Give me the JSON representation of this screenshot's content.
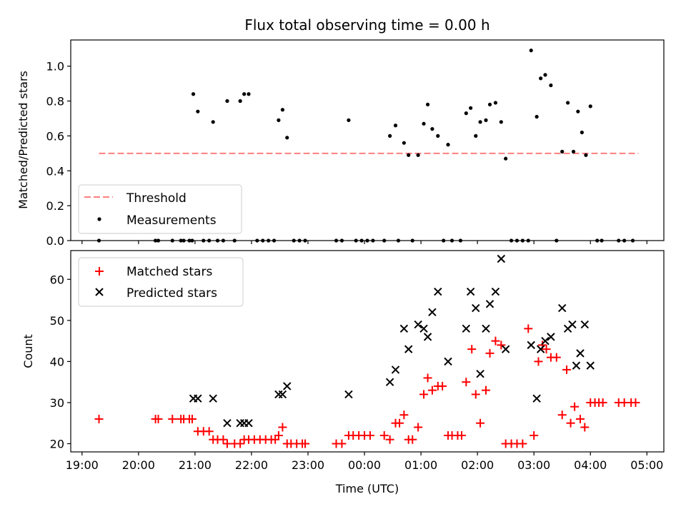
{
  "figure": {
    "title": "Flux total observing time = 0.00 h",
    "xlabel": "Time (UTC)"
  },
  "colors": {
    "threshold": "#ff7f7f",
    "measurements": "#000000",
    "matched": "#ff0000",
    "predicted": "#000000"
  },
  "chart_data": [
    {
      "type": "scatter",
      "ylabel": "Matched/Predicted stars",
      "ylim": [
        0,
        1.15
      ],
      "yticks": [
        0.0,
        0.2,
        0.4,
        0.6,
        0.8,
        1.0
      ],
      "ytick_labels": [
        "0.0",
        "0.2",
        "0.4",
        "0.6",
        "0.8",
        "1.0"
      ],
      "x_unit": "hours UTC (continuing past midnight)",
      "xlim": [
        18.8,
        29.3
      ],
      "xticks": [
        19,
        20,
        21,
        22,
        23,
        24,
        25,
        26,
        27,
        28,
        29
      ],
      "legend": {
        "position": "lower-left",
        "entries": [
          "Threshold",
          "Measurements"
        ]
      },
      "grid": false,
      "threshold": {
        "name": "Threshold",
        "x": [
          19.3,
          28.85
        ],
        "y": 0.5
      },
      "measurements": {
        "name": "Measurements",
        "points": [
          [
            19.3,
            0.0
          ],
          [
            20.3,
            0.0
          ],
          [
            20.35,
            0.0
          ],
          [
            20.6,
            0.0
          ],
          [
            20.75,
            0.0
          ],
          [
            20.8,
            0.0
          ],
          [
            20.9,
            0.0
          ],
          [
            20.95,
            0.0
          ],
          [
            20.97,
            0.84
          ],
          [
            21.05,
            0.74
          ],
          [
            21.15,
            0.0
          ],
          [
            21.25,
            0.0
          ],
          [
            21.32,
            0.68
          ],
          [
            21.4,
            0.0
          ],
          [
            21.5,
            0.0
          ],
          [
            21.57,
            0.8
          ],
          [
            21.7,
            0.0
          ],
          [
            21.8,
            0.8
          ],
          [
            21.87,
            0.84
          ],
          [
            21.95,
            0.84
          ],
          [
            22.1,
            0.0
          ],
          [
            22.2,
            0.0
          ],
          [
            22.3,
            0.0
          ],
          [
            22.4,
            0.0
          ],
          [
            22.48,
            0.69
          ],
          [
            22.55,
            0.75
          ],
          [
            22.63,
            0.59
          ],
          [
            22.75,
            0.0
          ],
          [
            22.85,
            0.0
          ],
          [
            22.95,
            0.0
          ],
          [
            23.5,
            0.0
          ],
          [
            23.6,
            0.0
          ],
          [
            23.72,
            0.69
          ],
          [
            23.85,
            0.0
          ],
          [
            23.95,
            0.0
          ],
          [
            24.05,
            0.0
          ],
          [
            24.15,
            0.0
          ],
          [
            24.35,
            0.0
          ],
          [
            24.45,
            0.6
          ],
          [
            24.55,
            0.66
          ],
          [
            24.6,
            0.0
          ],
          [
            24.7,
            0.56
          ],
          [
            24.78,
            0.49
          ],
          [
            24.85,
            0.0
          ],
          [
            24.95,
            0.49
          ],
          [
            25.05,
            0.67
          ],
          [
            25.12,
            0.78
          ],
          [
            25.2,
            0.64
          ],
          [
            25.3,
            0.6
          ],
          [
            25.4,
            0.0
          ],
          [
            25.48,
            0.55
          ],
          [
            25.55,
            0.0
          ],
          [
            25.7,
            0.0
          ],
          [
            25.8,
            0.73
          ],
          [
            25.88,
            0.76
          ],
          [
            25.97,
            0.6
          ],
          [
            26.05,
            0.68
          ],
          [
            26.15,
            0.69
          ],
          [
            26.22,
            0.78
          ],
          [
            26.32,
            0.79
          ],
          [
            26.42,
            0.68
          ],
          [
            26.5,
            0.47
          ],
          [
            26.6,
            0.0
          ],
          [
            26.7,
            0.0
          ],
          [
            26.8,
            0.0
          ],
          [
            26.9,
            0.0
          ],
          [
            26.95,
            1.09
          ],
          [
            27.05,
            0.71
          ],
          [
            27.12,
            0.93
          ],
          [
            27.2,
            0.95
          ],
          [
            27.3,
            0.89
          ],
          [
            27.4,
            0.0
          ],
          [
            27.5,
            0.51
          ],
          [
            27.6,
            0.79
          ],
          [
            27.7,
            0.51
          ],
          [
            27.78,
            0.74
          ],
          [
            27.85,
            0.62
          ],
          [
            27.92,
            0.49
          ],
          [
            28.0,
            0.77
          ],
          [
            28.12,
            0.0
          ],
          [
            28.2,
            0.0
          ],
          [
            28.5,
            0.0
          ],
          [
            28.6,
            0.0
          ],
          [
            28.75,
            0.0
          ]
        ]
      }
    },
    {
      "type": "scatter",
      "ylabel": "Count",
      "ylim": [
        18,
        67
      ],
      "yticks": [
        20,
        30,
        40,
        50,
        60
      ],
      "ytick_labels": [
        "20",
        "30",
        "40",
        "50",
        "60"
      ],
      "x_unit": "hours UTC (continuing past midnight)",
      "xlim": [
        18.8,
        29.3
      ],
      "xticks": [
        19,
        20,
        21,
        22,
        23,
        24,
        25,
        26,
        27,
        28,
        29
      ],
      "xtick_labels": [
        "19:00",
        "20:00",
        "21:00",
        "22:00",
        "23:00",
        "00:00",
        "01:00",
        "02:00",
        "03:00",
        "04:00",
        "05:00"
      ],
      "legend": {
        "position": "upper-left",
        "entries": [
          "Matched stars",
          "Predicted stars"
        ]
      },
      "grid": false,
      "series": [
        {
          "name": "Matched stars",
          "marker": "+",
          "points": [
            [
              19.3,
              26
            ],
            [
              20.3,
              26
            ],
            [
              20.35,
              26
            ],
            [
              20.6,
              26
            ],
            [
              20.75,
              26
            ],
            [
              20.8,
              26
            ],
            [
              20.9,
              26
            ],
            [
              20.95,
              26
            ],
            [
              21.05,
              23
            ],
            [
              21.15,
              23
            ],
            [
              21.25,
              23
            ],
            [
              21.32,
              21
            ],
            [
              21.4,
              21
            ],
            [
              21.5,
              21
            ],
            [
              21.57,
              20
            ],
            [
              21.7,
              20
            ],
            [
              21.8,
              20
            ],
            [
              21.87,
              21
            ],
            [
              21.95,
              21
            ],
            [
              22.05,
              21
            ],
            [
              22.15,
              21
            ],
            [
              22.25,
              21
            ],
            [
              22.35,
              21
            ],
            [
              22.42,
              21
            ],
            [
              22.48,
              22
            ],
            [
              22.55,
              24
            ],
            [
              22.63,
              20
            ],
            [
              22.7,
              20
            ],
            [
              22.8,
              20
            ],
            [
              22.9,
              20
            ],
            [
              22.95,
              20
            ],
            [
              23.5,
              20
            ],
            [
              23.6,
              20
            ],
            [
              23.72,
              22
            ],
            [
              23.8,
              22
            ],
            [
              23.9,
              22
            ],
            [
              24.0,
              22
            ],
            [
              24.1,
              22
            ],
            [
              24.35,
              22
            ],
            [
              24.45,
              21
            ],
            [
              24.55,
              25
            ],
            [
              24.62,
              25
            ],
            [
              24.7,
              27
            ],
            [
              24.78,
              21
            ],
            [
              24.85,
              21
            ],
            [
              24.95,
              24
            ],
            [
              25.05,
              32
            ],
            [
              25.12,
              36
            ],
            [
              25.2,
              33
            ],
            [
              25.3,
              34
            ],
            [
              25.38,
              34
            ],
            [
              25.48,
              22
            ],
            [
              25.55,
              22
            ],
            [
              25.65,
              22
            ],
            [
              25.72,
              22
            ],
            [
              25.8,
              35
            ],
            [
              25.9,
              43
            ],
            [
              25.97,
              32
            ],
            [
              26.05,
              25
            ],
            [
              26.15,
              33
            ],
            [
              26.22,
              42
            ],
            [
              26.32,
              45
            ],
            [
              26.42,
              44
            ],
            [
              26.5,
              20
            ],
            [
              26.6,
              20
            ],
            [
              26.7,
              20
            ],
            [
              26.8,
              20
            ],
            [
              26.9,
              48
            ],
            [
              27.0,
              22
            ],
            [
              27.08,
              40
            ],
            [
              27.15,
              44
            ],
            [
              27.22,
              43
            ],
            [
              27.3,
              41
            ],
            [
              27.4,
              41
            ],
            [
              27.5,
              27
            ],
            [
              27.58,
              38
            ],
            [
              27.65,
              25
            ],
            [
              27.72,
              29
            ],
            [
              27.82,
              26
            ],
            [
              27.9,
              24
            ],
            [
              28.0,
              30
            ],
            [
              28.08,
              30
            ],
            [
              28.15,
              30
            ],
            [
              28.22,
              30
            ],
            [
              28.5,
              30
            ],
            [
              28.6,
              30
            ],
            [
              28.72,
              30
            ],
            [
              28.8,
              30
            ]
          ]
        },
        {
          "name": "Predicted stars",
          "marker": "x",
          "points": [
            [
              20.97,
              31
            ],
            [
              21.05,
              31
            ],
            [
              21.32,
              31
            ],
            [
              21.57,
              25
            ],
            [
              21.8,
              25
            ],
            [
              21.87,
              25
            ],
            [
              21.95,
              25
            ],
            [
              22.48,
              32
            ],
            [
              22.55,
              32
            ],
            [
              22.63,
              34
            ],
            [
              23.72,
              32
            ],
            [
              24.45,
              35
            ],
            [
              24.55,
              38
            ],
            [
              24.7,
              48
            ],
            [
              24.78,
              43
            ],
            [
              24.95,
              49
            ],
            [
              25.05,
              48
            ],
            [
              25.12,
              46
            ],
            [
              25.2,
              52
            ],
            [
              25.3,
              57
            ],
            [
              25.48,
              40
            ],
            [
              25.8,
              48
            ],
            [
              25.88,
              57
            ],
            [
              25.97,
              53
            ],
            [
              26.05,
              37
            ],
            [
              26.15,
              48
            ],
            [
              26.22,
              54
            ],
            [
              26.32,
              57
            ],
            [
              26.42,
              65
            ],
            [
              26.5,
              43
            ],
            [
              26.95,
              44
            ],
            [
              27.05,
              31
            ],
            [
              27.12,
              43
            ],
            [
              27.2,
              45
            ],
            [
              27.3,
              46
            ],
            [
              27.5,
              53
            ],
            [
              27.6,
              48
            ],
            [
              27.68,
              49
            ],
            [
              27.75,
              39
            ],
            [
              27.82,
              42
            ],
            [
              27.9,
              49
            ],
            [
              28.0,
              39
            ]
          ]
        }
      ]
    }
  ]
}
